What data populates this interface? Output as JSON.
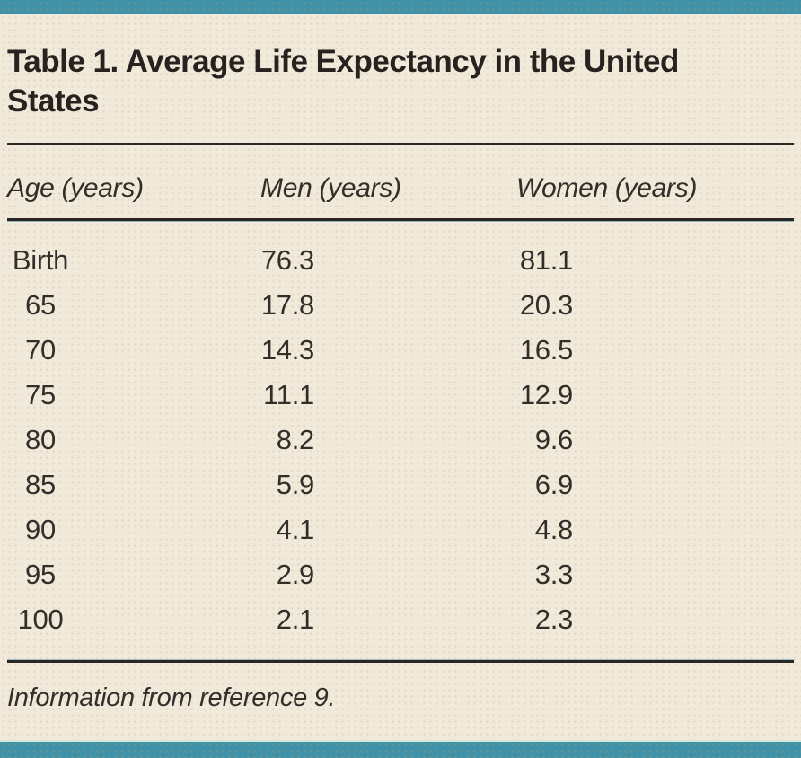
{
  "table": {
    "title": "Table 1. Average Life Expectancy in the United\nStates",
    "columns": [
      "Age (years)",
      "Men (years)",
      "Women (years)"
    ],
    "rows": [
      [
        "Birth",
        "76.3",
        "81.1"
      ],
      [
        "65",
        "17.8",
        "20.3"
      ],
      [
        "70",
        "14.3",
        "16.5"
      ],
      [
        "75",
        "11.1",
        "12.9"
      ],
      [
        "80",
        "8.2",
        "9.6"
      ],
      [
        "85",
        "5.9",
        "6.9"
      ],
      [
        "90",
        "4.1",
        "4.8"
      ],
      [
        "95",
        "2.9",
        "3.3"
      ],
      [
        "100",
        "2.1",
        "2.3"
      ]
    ],
    "footnote": "Information from reference 9."
  },
  "colors": {
    "accent_teal": "#4092a8",
    "background_beige": "#f1eadb",
    "text_dark": "#332e2a",
    "rule_dark": "#2b2623"
  },
  "chart_data": {
    "type": "table",
    "title": "Table 1. Average Life Expectancy in the United States",
    "columns": [
      "Age (years)",
      "Men (years)",
      "Women (years)"
    ],
    "rows": [
      [
        "Birth",
        76.3,
        81.1
      ],
      [
        "65",
        17.8,
        20.3
      ],
      [
        "70",
        14.3,
        16.5
      ],
      [
        "75",
        11.1,
        12.9
      ],
      [
        "80",
        8.2,
        9.6
      ],
      [
        "85",
        5.9,
        6.9
      ],
      [
        "90",
        4.1,
        4.8
      ],
      [
        "95",
        2.9,
        3.3
      ],
      [
        "100",
        2.1,
        2.3
      ]
    ],
    "note": "Information from reference 9."
  }
}
